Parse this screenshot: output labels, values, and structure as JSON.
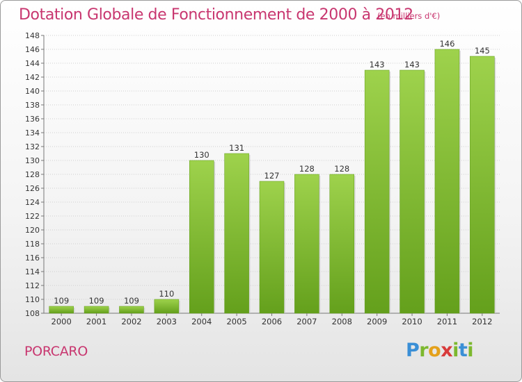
{
  "header": {
    "title": "Dotation Globale de Fonctionnement de 2000 à 2012",
    "subtitle": "(en milliers d'€)"
  },
  "footer": {
    "commune": "PORCARO",
    "logo_text": "Proxiti"
  },
  "colors": {
    "title": "#c8366f",
    "bar_light": "#9ed24c",
    "bar_dark": "#64a01c",
    "logo": [
      "#3a8fd6",
      "#7cb82e",
      "#e4a11b",
      "#d83b3b",
      "#7cb82e",
      "#3a8fd6",
      "#7cb82e"
    ]
  },
  "chart_data": {
    "type": "bar",
    "categories": [
      "2000",
      "2001",
      "2002",
      "2003",
      "2004",
      "2005",
      "2006",
      "2007",
      "2008",
      "2009",
      "2010",
      "2011",
      "2012"
    ],
    "values": [
      109,
      109,
      109,
      110,
      130,
      131,
      127,
      128,
      128,
      143,
      143,
      146,
      145
    ],
    "data_labels": [
      "109",
      "109",
      "109",
      "110",
      "130",
      "131",
      "127",
      "128",
      "128",
      "143",
      "143",
      "146",
      "145"
    ],
    "title": "Dotation Globale de Fonctionnement de 2000 à 2012",
    "subtitle": "(en milliers d'€)",
    "ylim": [
      108,
      148
    ],
    "yticks": [
      108,
      110,
      112,
      114,
      116,
      118,
      120,
      122,
      124,
      126,
      128,
      130,
      132,
      134,
      136,
      138,
      140,
      142,
      144,
      146,
      148
    ],
    "grid": true,
    "legend": "none"
  }
}
